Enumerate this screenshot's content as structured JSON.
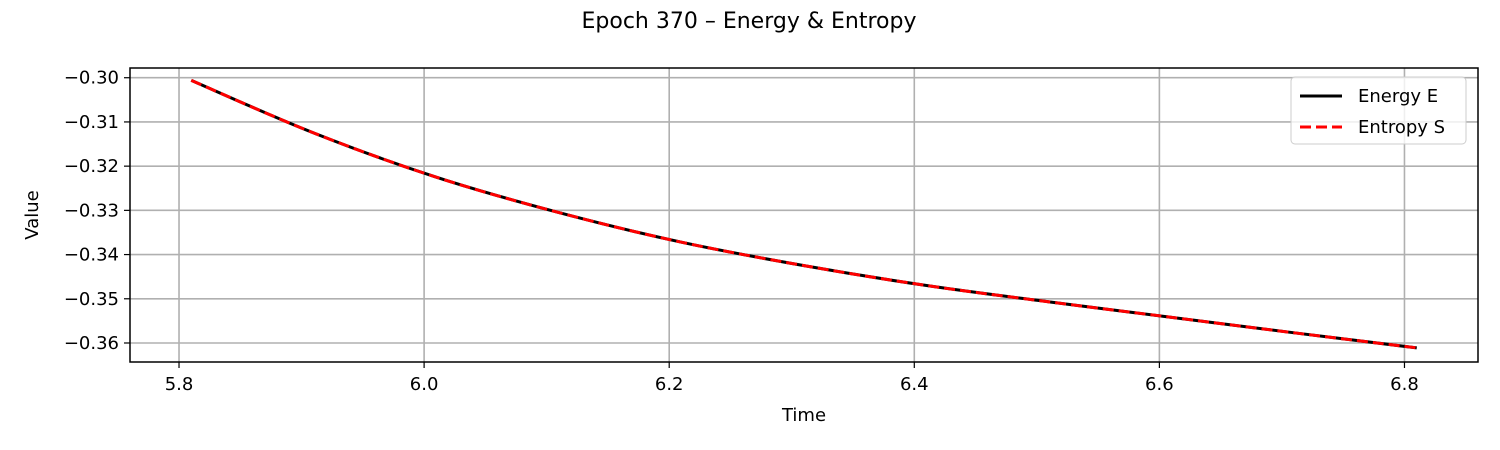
{
  "chart_data": {
    "type": "line",
    "title": "Epoch 370 – Energy & Entropy",
    "xlabel": "Time",
    "ylabel": "Value",
    "xlim": [
      5.76,
      6.86
    ],
    "ylim": [
      -0.3643,
      -0.2978
    ],
    "xticks": [
      5.8,
      6.0,
      6.2,
      6.4,
      6.6,
      6.8
    ],
    "xtick_labels": [
      "5.8",
      "6.0",
      "6.2",
      "6.4",
      "6.6",
      "6.8"
    ],
    "yticks": [
      -0.3,
      -0.31,
      -0.32,
      -0.33,
      -0.34,
      -0.35,
      -0.36
    ],
    "ytick_labels": [
      "−0.30",
      "−0.31",
      "−0.32",
      "−0.33",
      "−0.34",
      "−0.35",
      "−0.36"
    ],
    "grid": true,
    "legend_position": "top-right",
    "x": [
      5.81,
      5.91,
      6.01,
      6.11,
      6.21,
      6.31,
      6.41,
      6.51,
      6.61,
      6.71,
      6.81
    ],
    "series": [
      {
        "name": "Energy E",
        "color": "#000000",
        "style": "solid",
        "values": [
          -0.3006,
          -0.3125,
          -0.3225,
          -0.3305,
          -0.3372,
          -0.3425,
          -0.347,
          -0.3507,
          -0.3542,
          -0.3577,
          -0.3611
        ]
      },
      {
        "name": "Entropy S",
        "color": "#ff0000",
        "style": "dashed",
        "values": [
          -0.3006,
          -0.3125,
          -0.3225,
          -0.3305,
          -0.3372,
          -0.3425,
          -0.347,
          -0.3507,
          -0.3542,
          -0.3577,
          -0.3611
        ]
      }
    ]
  }
}
